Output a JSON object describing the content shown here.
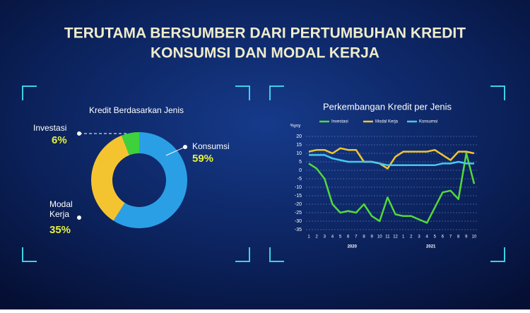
{
  "title_lines": [
    "TERUTAMA BERSUMBER DARI PERTUMBUHAN KREDIT",
    "KONSUMSI DAN MODAL KERJA"
  ],
  "chart_data": [
    {
      "type": "donut",
      "title": "Kredit Berdasarkan Jenis",
      "categories": [
        "Konsumsi",
        "Modal Kerja",
        "Investasi"
      ],
      "values": [
        59,
        35,
        6
      ],
      "value_labels": [
        "59%",
        "35%",
        "6%"
      ],
      "colors": [
        "#2b9fe6",
        "#f4c430",
        "#3fd13c"
      ]
    },
    {
      "type": "line",
      "title": "Perkembangan Kredit per Jenis",
      "y_label": "%yoy",
      "categories": [
        "1",
        "2",
        "3",
        "4",
        "5",
        "6",
        "7",
        "8",
        "9",
        "10",
        "11",
        "12",
        "1",
        "2",
        "3",
        "4",
        "5",
        "6",
        "7",
        "8",
        "9",
        "10"
      ],
      "x_group_labels": [
        "2020",
        "2021"
      ],
      "ylim": [
        -35,
        20
      ],
      "yticks": [
        -35,
        -30,
        -25,
        -20,
        -15,
        -10,
        -5,
        0,
        5,
        10,
        15,
        20
      ],
      "grid": true,
      "series": [
        {
          "name": "Investasi",
          "color": "#52d93a",
          "values": [
            4,
            1,
            -5,
            -20,
            -25,
            -24,
            -25,
            -20,
            -27,
            -30,
            -16,
            -26,
            -27,
            -27,
            -29,
            -31,
            -22,
            -13,
            -12,
            -17,
            10,
            -8
          ]
        },
        {
          "name": "Modal Kerja",
          "color": "#f0c530",
          "values": [
            11,
            12,
            12,
            10,
            13,
            12,
            12,
            5,
            5,
            4,
            1,
            8,
            11,
            11,
            11,
            11,
            12,
            9,
            6,
            11,
            11,
            10
          ]
        },
        {
          "name": "Konsumsi",
          "color": "#46c8f0",
          "values": [
            9,
            9,
            9,
            7,
            6,
            5,
            5,
            5,
            5,
            4,
            3,
            3,
            3,
            3,
            3,
            3,
            3,
            4,
            4,
            5,
            4,
            4
          ]
        }
      ]
    }
  ]
}
